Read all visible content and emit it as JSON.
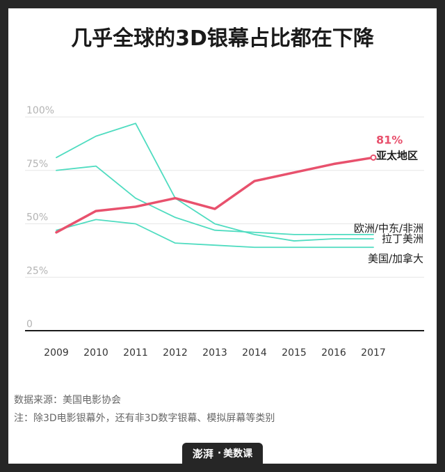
{
  "title": "几乎全球的3D银幕占比都在下降",
  "source": "数据来源：美国电影协会",
  "note": "注：除3D电影银幕外，还有非3D数字银幕、模拟屏幕等类别",
  "brand": {
    "logo": "澎湃",
    "name": "美数课"
  },
  "chart_data": {
    "type": "line",
    "title": "几乎全球的3D银幕占比都在下降",
    "x": [
      "2009",
      "2010",
      "2011",
      "2012",
      "2013",
      "2014",
      "2015",
      "2016",
      "2017"
    ],
    "y_ticks": [
      "0",
      "25%",
      "50%",
      "75%",
      "100%"
    ],
    "ylim": [
      0,
      100
    ],
    "grid": true,
    "series": [
      {
        "name": "亚太地区",
        "color": "#e8516d",
        "highlight": true,
        "values": [
          46,
          56,
          58,
          62,
          57,
          70,
          74,
          78,
          81
        ],
        "end_label": "81%"
      },
      {
        "name": "欧洲/中东/非洲",
        "color": "#4fdcc0",
        "values": [
          81,
          91,
          97,
          62,
          50,
          45,
          42,
          43,
          43
        ]
      },
      {
        "name": "拉丁美洲",
        "color": "#4fdcc0",
        "values": [
          75,
          77,
          62,
          53,
          47,
          46,
          45,
          45,
          45
        ]
      },
      {
        "name": "美国/加拿大",
        "color": "#4fdcc0",
        "values": [
          47,
          52,
          50,
          41,
          40,
          39,
          39,
          39,
          39
        ]
      }
    ]
  }
}
